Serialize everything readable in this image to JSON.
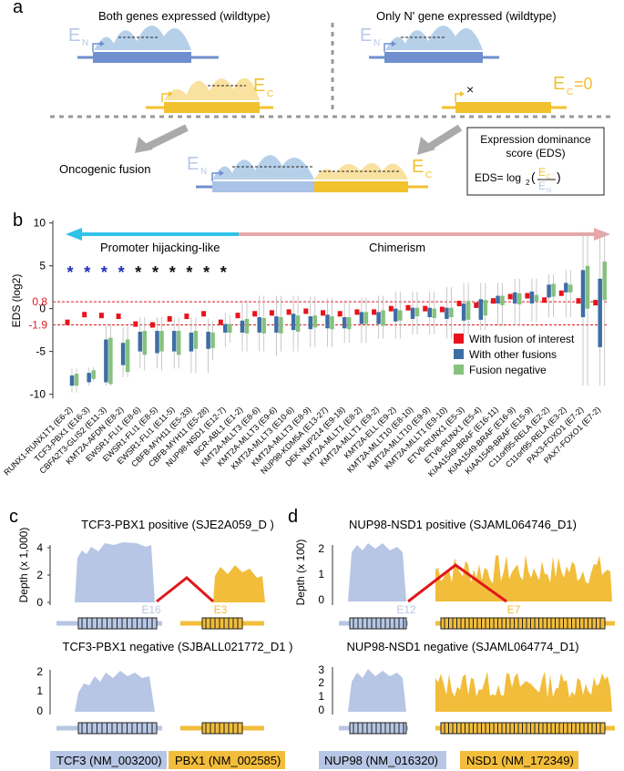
{
  "panel_a": {
    "label": "a",
    "left_title": "Both genes expressed (wildtype)",
    "right_title": "Only N' gene expressed (wildtype)",
    "en_letter": "E",
    "en_sub": "N",
    "ec_letter": "E",
    "ec_sub": "C",
    "ec_zero": "=0",
    "fusion_label": "Oncogenic fusion",
    "eds_box_title1": "Expression dominance",
    "eds_box_title2": "score (EDS)",
    "eds_formula_left": "EDS= log",
    "eds_formula_base": "2",
    "x_mark": "×",
    "colors": {
      "n_gene": "#6f8fcf",
      "n_light": "#b7c8e8",
      "c_gene": "#f2c12e",
      "c_light": "#f7dc8a"
    }
  },
  "panel_b": {
    "label": "b",
    "ylabel": "EDS (log2)",
    "hijack_label": "Promoter hijacking-like",
    "chimerism_label": "Chimerism",
    "threshold_hi": "0.8",
    "threshold_lo": "-1.9",
    "star": "*",
    "legend": [
      {
        "label": "With fusion of interest",
        "color": "#e8131b"
      },
      {
        "label": "With other fusions",
        "color": "#3e6ea5"
      },
      {
        "label": "Fusion negative",
        "color": "#86c17e"
      }
    ]
  },
  "chart_data": {
    "type": "box",
    "ylabel": "EDS (log2)",
    "ylim": [
      -11,
      10.5
    ],
    "yticks": [
      10,
      5,
      0,
      -5,
      -10
    ],
    "hlines": [
      0.8,
      -1.9
    ],
    "star_colors": [
      "#1f2fbd",
      "#1f2fbd",
      "#1f2fbd",
      "#1f2fbd",
      "#111",
      "#111",
      "#111",
      "#111",
      "#111",
      "#111"
    ],
    "categories": [
      "RUNX1-RUNX1T1 (E6-2)",
      "TCF3-PBX1 (E16-3)",
      "CBFA2T3-GLIS2 (E11-3)",
      "KMT2A-AFDN (E8-2)",
      "EWSR1-FLI1 (E8-6)",
      "EWSR1-FLI1 (E8-5)",
      "EWSR1-FLI1 (E11-5)",
      "CBFB-MYH11 (E5-33)",
      "CBFB-MYH11 (E5-28)",
      "NUP98-NSD1 (E12-7)",
      "BCR-ABL1 (E1-2)",
      "KMT2A-MLLT3 (E8-6)",
      "KMT2A-MLLT3 (E9-6)",
      "KMT2A-MLLT3 (E10-6)",
      "KMT2A-MLLT3 (E8-9)",
      "NUP98-KDM5A (E13-27)",
      "DEK-NUP214 (E9-18)",
      "KMT2A-MLLT1 (E8-2)",
      "KMT2A-MLLT1 (E9-2)",
      "KMT2A-ELL (E9-2)",
      "KMT2A-MLLT10 (E8-10)",
      "KMT2A-MLLT10 (E9-9)",
      "KMT2A-MLLT1 (E9-10)",
      "ETV6-RUNX1 (E5-3)",
      "ETV6-RUNX1 (E5-4)",
      "KIAA1549-BRAF (E16-11)",
      "KIAA1549-BRAF (E16-9)",
      "KIAA1549-BRAF (E15-9)",
      "C11orf95-RELA (E2-2)",
      "C11orf95-RELA (E3-2)",
      "PAX3-FOXO1 (E7-2)",
      "PAX7-FOXO1 (E7-2)"
    ],
    "fusion_of_interest": [
      -1.6,
      -0.7,
      -0.8,
      -0.9,
      -1.8,
      -1.9,
      -1.2,
      -0.9,
      -0.6,
      -1.6,
      -0.8,
      -0.6,
      -0.5,
      -0.4,
      -0.3,
      -0.5,
      -0.6,
      -0.4,
      -0.4,
      0.0,
      0.1,
      0.0,
      -0.1,
      0.6,
      0.4,
      0.9,
      1.4,
      1.5,
      1.0,
      1.8,
      0.9,
      0.7
    ],
    "with_other_fusions": [
      [
        -9.8,
        -9.0,
        -8.5,
        -7.8,
        -7.0
      ],
      [
        -9.0,
        -8.6,
        -8.0,
        -7.5,
        -6.9
      ],
      [
        -9.0,
        -8.6,
        -6.0,
        -3.6,
        -2.0
      ],
      [
        -8.0,
        -6.6,
        -5.8,
        -4.0,
        -2.2
      ],
      [
        -7.0,
        -5.0,
        -4.1,
        -2.7,
        -1.0
      ],
      [
        -7.0,
        -5.2,
        -4.3,
        -2.6,
        -1.0
      ],
      [
        -7.0,
        -5.0,
        -4.4,
        -2.6,
        -1.0
      ],
      [
        -7.5,
        -5.0,
        -4.2,
        -2.8,
        -1.0
      ],
      [
        -7.5,
        -4.7,
        -4.2,
        -2.7,
        -1.2
      ],
      [
        -4.5,
        -2.8,
        -2.3,
        -1.8,
        -0.5
      ],
      [
        -5.0,
        -2.8,
        -2.2,
        -1.4,
        1.0
      ],
      [
        -5.0,
        -2.8,
        -2.3,
        -1.0,
        1.5
      ],
      [
        -5.5,
        -2.8,
        -2.3,
        -0.9,
        1.5
      ],
      [
        -5.0,
        -2.5,
        -1.7,
        -0.6,
        1.5
      ],
      [
        -4.5,
        -2.4,
        -2.0,
        -0.9,
        1.4
      ],
      [
        -4.5,
        -2.3,
        -1.7,
        -0.7,
        1.2
      ],
      [
        -4.0,
        -2.3,
        -1.8,
        -1.0,
        1.0
      ],
      [
        -4.0,
        -1.8,
        -1.2,
        -0.4,
        1.3
      ],
      [
        -3.5,
        -1.8,
        -1.3,
        -0.4,
        1.5
      ],
      [
        -3.5,
        -1.5,
        -1.0,
        0.0,
        2.0
      ],
      [
        -3.0,
        -1.2,
        -0.9,
        0.1,
        2.0
      ],
      [
        -3.0,
        -1.0,
        -0.5,
        0.1,
        2.0
      ],
      [
        -3.5,
        -1.2,
        -0.6,
        0.1,
        2.5
      ],
      [
        -3.0,
        -1.4,
        -0.5,
        0.6,
        3.0
      ],
      [
        -2.5,
        -1.3,
        -0.6,
        1.1,
        3.0
      ],
      [
        -2.0,
        0.6,
        1.0,
        1.5,
        3.0
      ],
      [
        -2.0,
        0.6,
        1.2,
        1.9,
        3.5
      ],
      [
        -1.5,
        0.6,
        1.3,
        2.0,
        3.5
      ],
      [
        -1.0,
        1.3,
        2.2,
        2.8,
        4.0
      ],
      [
        -1.0,
        1.9,
        2.4,
        3.0,
        4.5
      ],
      [
        -9.0,
        -1.0,
        2.5,
        4.5,
        9.0
      ],
      [
        -9.0,
        -4.5,
        1.5,
        3.5,
        9.0
      ]
    ],
    "fusion_negative": [
      [
        -9.8,
        -9.0,
        -8.6,
        -7.6,
        -7.0
      ],
      [
        -8.5,
        -8.2,
        -7.6,
        -7.2,
        -6.8
      ],
      [
        -9.0,
        -8.8,
        -6.0,
        -3.4,
        -1.8
      ],
      [
        -8.0,
        -7.4,
        -6.0,
        -3.6,
        -2.0
      ],
      [
        -7.2,
        -5.4,
        -4.0,
        -2.6,
        -1.0
      ],
      [
        -7.2,
        -5.0,
        -4.1,
        -2.6,
        -1.0
      ],
      [
        -7.0,
        -5.4,
        -4.2,
        -2.6,
        -1.0
      ],
      [
        -7.5,
        -4.7,
        -4.0,
        -2.6,
        -1.0
      ],
      [
        -6.0,
        -4.6,
        -4.0,
        -2.8,
        -1.5
      ],
      [
        -4.0,
        -2.8,
        -2.3,
        -1.8,
        -0.8
      ],
      [
        -5.0,
        -2.9,
        -2.0,
        -1.2,
        1.0
      ],
      [
        -5.0,
        -2.9,
        -2.4,
        -1.1,
        1.5
      ],
      [
        -5.0,
        -2.9,
        -2.2,
        -1.0,
        1.5
      ],
      [
        -5.0,
        -2.7,
        -1.7,
        -0.8,
        1.5
      ],
      [
        -4.5,
        -2.2,
        -1.9,
        -0.8,
        1.4
      ],
      [
        -4.5,
        -2.4,
        -1.7,
        -0.9,
        1.2
      ],
      [
        -4.0,
        -2.4,
        -1.8,
        -1.0,
        1.0
      ],
      [
        -4.0,
        -1.8,
        -1.2,
        -0.4,
        1.3
      ],
      [
        -3.5,
        -2.0,
        -1.4,
        -0.2,
        1.5
      ],
      [
        -3.5,
        -1.4,
        -0.9,
        -0.2,
        2.0
      ],
      [
        -3.0,
        -0.9,
        -0.5,
        0.1,
        2.0
      ],
      [
        -3.0,
        -1.1,
        -0.5,
        0.0,
        2.0
      ],
      [
        -3.5,
        -1.0,
        -0.4,
        0.1,
        2.5
      ],
      [
        -3.0,
        -1.3,
        -0.4,
        0.9,
        3.0
      ],
      [
        -2.5,
        -0.8,
        -0.1,
        1.0,
        3.0
      ],
      [
        -2.0,
        0.4,
        0.9,
        1.5,
        3.0
      ],
      [
        -2.0,
        0.5,
        1.0,
        1.8,
        3.5
      ],
      [
        -1.5,
        0.8,
        1.3,
        1.6,
        3.5
      ],
      [
        -1.0,
        1.4,
        2.3,
        2.9,
        4.0
      ],
      [
        -1.0,
        1.9,
        2.6,
        2.8,
        4.5
      ],
      [
        -9.0,
        0.0,
        2.0,
        5.0,
        9.0
      ],
      [
        -9.0,
        1.0,
        3.0,
        5.5,
        9.0
      ]
    ]
  },
  "panel_c": {
    "label": "c",
    "top_title": "TCF3-PBX1 positive (SJE2A059_D )",
    "bottom_title": "TCF3-PBX1 negative (SJBALL021772_D1 )",
    "ylabel": "Depth (x 1,000)",
    "top_yticks": [
      "4",
      "2",
      "0"
    ],
    "bottom_yticks": [
      "2",
      "1",
      "0"
    ],
    "exon_n": "E16",
    "exon_c": "E3",
    "gene_n": "TCF3 (NM_003200)",
    "gene_c": "PBX1 (NM_002585)"
  },
  "panel_d": {
    "label": "d",
    "top_title": "NUP98-NSD1 positive (SJAML064746_D1)",
    "bottom_title": "NUP98-NSD1 negative (SJAML064774_D1)",
    "ylabel": "Depth (x 100)",
    "top_yticks": [
      "2",
      "1",
      "0"
    ],
    "bottom_yticks": [
      "3",
      "2",
      "1",
      "0"
    ],
    "exon_n": "E12",
    "exon_c": "E7",
    "gene_n": "NUP98 (NM_016320)",
    "gene_c": "NSD1 (NM_172349)"
  }
}
